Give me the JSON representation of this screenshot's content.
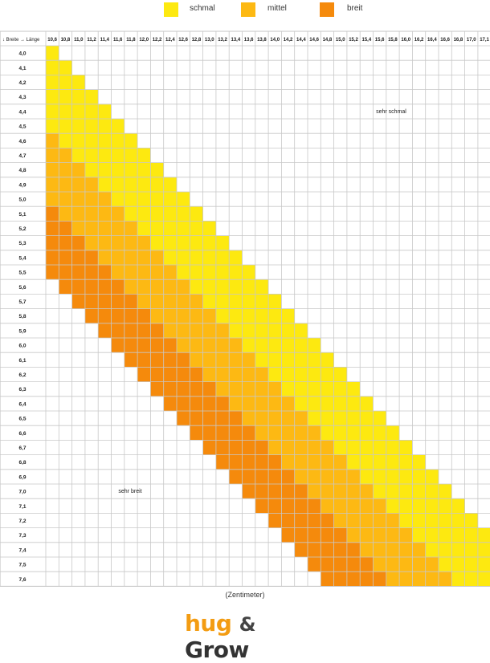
{
  "legend": [
    {
      "label": "schmal",
      "color": "#fde910"
    },
    {
      "label": "mittel",
      "color": "#fdb913"
    },
    {
      "label": "breit",
      "color": "#f58a0c"
    }
  ],
  "corner_label": "↓ Breite → Länge",
  "x_unit_label": "(Zentimeter)",
  "logo": {
    "hug": "hug",
    "amp": "&",
    "grow": "Grow"
  },
  "chart_data": {
    "type": "heatmap",
    "title": "",
    "xlabel": "(Zentimeter)",
    "ylabel": "",
    "x_title": "Länge",
    "y_title": "Breite",
    "x": [
      "10,6",
      "10,8",
      "11,0",
      "11,2",
      "11,4",
      "11,6",
      "11,8",
      "12,0",
      "12,2",
      "12,4",
      "12,6",
      "12,8",
      "13,0",
      "13,2",
      "13,4",
      "13,6",
      "13,8",
      "14,0",
      "14,2",
      "14,4",
      "14,6",
      "14,8",
      "15,0",
      "15,2",
      "15,4",
      "15,6",
      "15,8",
      "16,0",
      "16,2",
      "16,4",
      "16,6",
      "16,8",
      "17,0",
      "17,1"
    ],
    "y": [
      "4,0",
      "4,1",
      "4,2",
      "4,3",
      "4,4",
      "4,5",
      "4,6",
      "4,7",
      "4,8",
      "4,9",
      "5,0",
      "5,1",
      "5,2",
      "5,3",
      "5,4",
      "5,5",
      "5,6",
      "5,7",
      "5,8",
      "5,9",
      "6,0",
      "6,1",
      "6,2",
      "6,3",
      "6,4",
      "6,5",
      "6,6",
      "6,7",
      "6,8",
      "6,9",
      "7,0",
      "7,1",
      "7,2",
      "7,3",
      "7,4",
      "7,5",
      "7,6"
    ],
    "categories": [
      "schmal",
      "mittel",
      "breit"
    ],
    "colors": {
      "schmal": "#fde910",
      "mittel": "#fdb913",
      "breit": "#f58a0c"
    },
    "rows": [
      {
        "y": "4,0",
        "ranges": [
          [
            "schmal",
            "10,6",
            "10,6"
          ]
        ]
      },
      {
        "y": "4,1",
        "ranges": [
          [
            "schmal",
            "10,6",
            "10,8"
          ]
        ]
      },
      {
        "y": "4,2",
        "ranges": [
          [
            "schmal",
            "10,6",
            "11,0"
          ]
        ]
      },
      {
        "y": "4,3",
        "ranges": [
          [
            "schmal",
            "10,6",
            "11,2"
          ]
        ]
      },
      {
        "y": "4,4",
        "ranges": [
          [
            "schmal",
            "10,6",
            "11,4"
          ]
        ]
      },
      {
        "y": "4,5",
        "ranges": [
          [
            "schmal",
            "10,6",
            "11,6"
          ]
        ]
      },
      {
        "y": "4,6",
        "ranges": [
          [
            "mittel",
            "10,6",
            "10,6"
          ],
          [
            "schmal",
            "10,8",
            "11,8"
          ]
        ]
      },
      {
        "y": "4,7",
        "ranges": [
          [
            "mittel",
            "10,6",
            "10,8"
          ],
          [
            "schmal",
            "11,0",
            "12,0"
          ]
        ]
      },
      {
        "y": "4,8",
        "ranges": [
          [
            "mittel",
            "10,6",
            "11,0"
          ],
          [
            "schmal",
            "11,2",
            "12,2"
          ]
        ]
      },
      {
        "y": "4,9",
        "ranges": [
          [
            "mittel",
            "10,6",
            "11,2"
          ],
          [
            "schmal",
            "11,4",
            "12,4"
          ]
        ]
      },
      {
        "y": "5,0",
        "ranges": [
          [
            "mittel",
            "10,6",
            "11,4"
          ],
          [
            "schmal",
            "11,6",
            "12,6"
          ]
        ]
      },
      {
        "y": "5,1",
        "ranges": [
          [
            "breit",
            "10,6",
            "10,6"
          ],
          [
            "mittel",
            "10,8",
            "11,6"
          ],
          [
            "schmal",
            "11,8",
            "12,8"
          ]
        ]
      },
      {
        "y": "5,2",
        "ranges": [
          [
            "breit",
            "10,6",
            "10,8"
          ],
          [
            "mittel",
            "11,0",
            "11,8"
          ],
          [
            "schmal",
            "12,0",
            "13,0"
          ]
        ]
      },
      {
        "y": "5,3",
        "ranges": [
          [
            "breit",
            "10,6",
            "11,0"
          ],
          [
            "mittel",
            "11,2",
            "12,0"
          ],
          [
            "schmal",
            "12,2",
            "13,2"
          ]
        ]
      },
      {
        "y": "5,4",
        "ranges": [
          [
            "breit",
            "10,6",
            "11,2"
          ],
          [
            "mittel",
            "11,4",
            "12,2"
          ],
          [
            "schmal",
            "12,4",
            "13,4"
          ]
        ]
      },
      {
        "y": "5,5",
        "ranges": [
          [
            "breit",
            "10,6",
            "11,4"
          ],
          [
            "mittel",
            "11,6",
            "12,4"
          ],
          [
            "schmal",
            "12,6",
            "13,6"
          ]
        ]
      },
      {
        "y": "5,6",
        "ranges": [
          [
            "breit",
            "10,8",
            "11,6"
          ],
          [
            "mittel",
            "11,8",
            "12,6"
          ],
          [
            "schmal",
            "12,8",
            "13,8"
          ]
        ]
      },
      {
        "y": "5,7",
        "ranges": [
          [
            "breit",
            "11,0",
            "11,8"
          ],
          [
            "mittel",
            "12,0",
            "12,8"
          ],
          [
            "schmal",
            "13,0",
            "14,0"
          ]
        ]
      },
      {
        "y": "5,8",
        "ranges": [
          [
            "breit",
            "11,2",
            "12,0"
          ],
          [
            "mittel",
            "12,2",
            "13,0"
          ],
          [
            "schmal",
            "13,2",
            "14,2"
          ]
        ]
      },
      {
        "y": "5,9",
        "ranges": [
          [
            "breit",
            "11,4",
            "12,2"
          ],
          [
            "mittel",
            "12,4",
            "13,2"
          ],
          [
            "schmal",
            "13,4",
            "14,4"
          ]
        ]
      },
      {
        "y": "6,0",
        "ranges": [
          [
            "breit",
            "11,6",
            "12,4"
          ],
          [
            "mittel",
            "12,6",
            "13,4"
          ],
          [
            "schmal",
            "13,6",
            "14,6"
          ]
        ]
      },
      {
        "y": "6,1",
        "ranges": [
          [
            "breit",
            "11,8",
            "12,6"
          ],
          [
            "mittel",
            "12,8",
            "13,6"
          ],
          [
            "schmal",
            "13,8",
            "14,8"
          ]
        ]
      },
      {
        "y": "6,2",
        "ranges": [
          [
            "breit",
            "12,0",
            "12,8"
          ],
          [
            "mittel",
            "13,0",
            "13,8"
          ],
          [
            "schmal",
            "14,0",
            "15,0"
          ]
        ]
      },
      {
        "y": "6,3",
        "ranges": [
          [
            "breit",
            "12,2",
            "13,0"
          ],
          [
            "mittel",
            "13,2",
            "14,0"
          ],
          [
            "schmal",
            "14,2",
            "15,2"
          ]
        ]
      },
      {
        "y": "6,4",
        "ranges": [
          [
            "breit",
            "12,4",
            "13,2"
          ],
          [
            "mittel",
            "13,4",
            "14,2"
          ],
          [
            "schmal",
            "14,4",
            "15,4"
          ]
        ]
      },
      {
        "y": "6,5",
        "ranges": [
          [
            "breit",
            "12,6",
            "13,4"
          ],
          [
            "mittel",
            "13,6",
            "14,4"
          ],
          [
            "schmal",
            "14,6",
            "15,6"
          ]
        ]
      },
      {
        "y": "6,6",
        "ranges": [
          [
            "breit",
            "12,8",
            "13,6"
          ],
          [
            "mittel",
            "13,8",
            "14,6"
          ],
          [
            "schmal",
            "14,8",
            "15,8"
          ]
        ]
      },
      {
        "y": "6,7",
        "ranges": [
          [
            "breit",
            "13,0",
            "13,8"
          ],
          [
            "mittel",
            "14,0",
            "14,8"
          ],
          [
            "schmal",
            "15,0",
            "16,0"
          ]
        ]
      },
      {
        "y": "6,8",
        "ranges": [
          [
            "breit",
            "13,2",
            "14,0"
          ],
          [
            "mittel",
            "14,2",
            "15,0"
          ],
          [
            "schmal",
            "15,2",
            "16,2"
          ]
        ]
      },
      {
        "y": "6,9",
        "ranges": [
          [
            "breit",
            "13,4",
            "14,2"
          ],
          [
            "mittel",
            "14,4",
            "15,2"
          ],
          [
            "schmal",
            "15,4",
            "16,4"
          ]
        ]
      },
      {
        "y": "7,0",
        "ranges": [
          [
            "breit",
            "13,6",
            "14,4"
          ],
          [
            "mittel",
            "14,6",
            "15,4"
          ],
          [
            "schmal",
            "15,6",
            "16,6"
          ]
        ]
      },
      {
        "y": "7,1",
        "ranges": [
          [
            "breit",
            "13,8",
            "14,6"
          ],
          [
            "mittel",
            "14,8",
            "15,6"
          ],
          [
            "schmal",
            "15,8",
            "16,8"
          ]
        ]
      },
      {
        "y": "7,2",
        "ranges": [
          [
            "breit",
            "14,0",
            "14,8"
          ],
          [
            "mittel",
            "15,0",
            "15,8"
          ],
          [
            "schmal",
            "16,0",
            "17,0"
          ]
        ]
      },
      {
        "y": "7,3",
        "ranges": [
          [
            "breit",
            "14,2",
            "15,0"
          ],
          [
            "mittel",
            "15,2",
            "16,0"
          ],
          [
            "schmal",
            "16,2",
            "17,1"
          ]
        ]
      },
      {
        "y": "7,4",
        "ranges": [
          [
            "breit",
            "14,4",
            "15,2"
          ],
          [
            "mittel",
            "15,4",
            "16,2"
          ],
          [
            "schmal",
            "16,4",
            "17,1"
          ]
        ]
      },
      {
        "y": "7,5",
        "ranges": [
          [
            "breit",
            "14,6",
            "15,4"
          ],
          [
            "mittel",
            "15,6",
            "16,4"
          ],
          [
            "schmal",
            "16,6",
            "17,1"
          ]
        ]
      },
      {
        "y": "7,6",
        "ranges": [
          [
            "breit",
            "14,8",
            "15,6"
          ],
          [
            "mittel",
            "15,8",
            "16,6"
          ],
          [
            "schmal",
            "16,8",
            "17,1"
          ]
        ]
      }
    ],
    "annotations": [
      "sehr schmal",
      "sehr breit"
    ],
    "grid": true
  }
}
